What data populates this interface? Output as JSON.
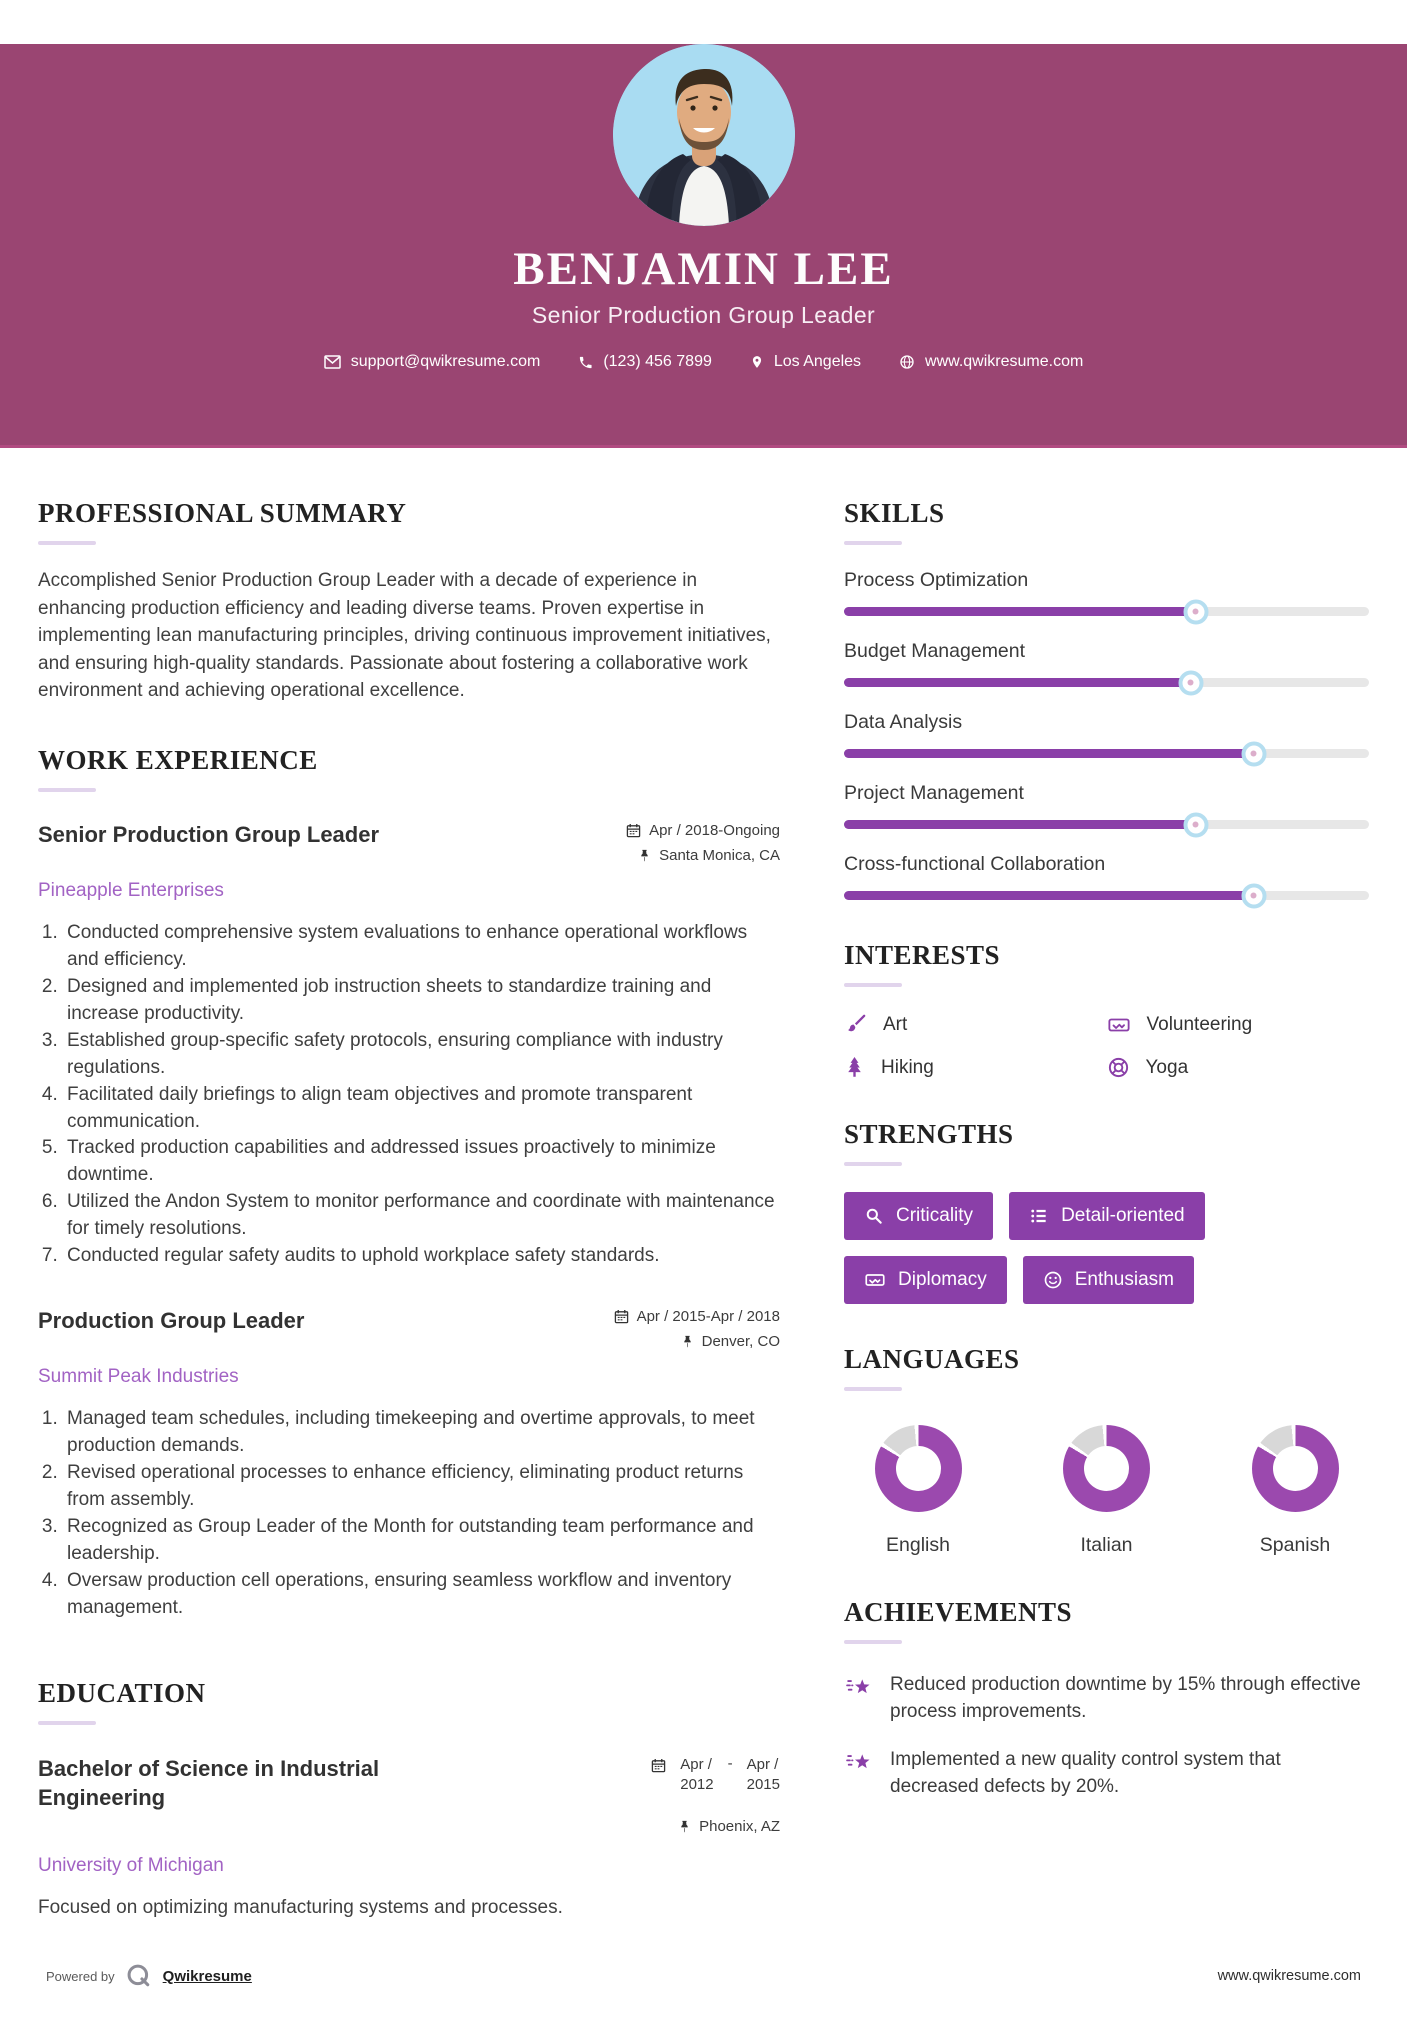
{
  "colors": {
    "header_bg": "#9a4572",
    "accent_purple": "#8a3fa8",
    "donut_purple": "#9b49ae",
    "company_link": "#a263c4",
    "knob_border": "#b5def0"
  },
  "header": {
    "name": "BENJAMIN LEE",
    "title": "Senior Production Group Leader",
    "contact": {
      "email": "support@qwikresume.com",
      "phone": "(123) 456 7899",
      "location": "Los Angeles",
      "website": "www.qwikresume.com"
    }
  },
  "left": {
    "summary": {
      "heading": "PROFESSIONAL SUMMARY",
      "text": "Accomplished Senior Production Group Leader with a decade of experience in enhancing production efficiency and leading diverse teams. Proven expertise in implementing lean manufacturing principles, driving continuous improvement initiatives, and ensuring high-quality standards. Passionate about fostering a collaborative work environment and achieving operational excellence."
    },
    "experience": {
      "heading": "WORK EXPERIENCE",
      "jobs": [
        {
          "title": "Senior Production Group Leader",
          "company": "Pineapple Enterprises",
          "date": "Apr / 2018-Ongoing",
          "location": "Santa Monica, CA",
          "bullets": [
            "Conducted comprehensive system evaluations to enhance operational workflows and efficiency.",
            "Designed and implemented job instruction sheets to standardize training and increase productivity.",
            "Established group-specific safety protocols, ensuring compliance with industry regulations.",
            "Facilitated daily briefings to align team objectives and promote transparent communication.",
            "Tracked production capabilities and addressed issues proactively to minimize downtime.",
            "Utilized the Andon System to monitor performance and coordinate with maintenance for timely resolutions.",
            "Conducted regular safety audits to uphold workplace safety standards."
          ]
        },
        {
          "title": "Production Group Leader",
          "company": "Summit Peak Industries",
          "date": "Apr / 2015-Apr / 2018",
          "location": "Denver, CO",
          "bullets": [
            "Managed team schedules, including timekeeping and overtime approvals, to meet production demands.",
            "Revised operational processes to enhance efficiency, eliminating product returns from assembly.",
            "Recognized as Group Leader of the Month for outstanding team performance and leadership.",
            "Oversaw production cell operations, ensuring seamless workflow and inventory management."
          ]
        }
      ]
    },
    "education": {
      "heading": "EDUCATION",
      "degree": "Bachelor of Science in Industrial Engineering",
      "school": "University of Michigan",
      "date_start": "Apr /\n2012",
      "date_sep": "-",
      "date_end": "Apr /\n2015",
      "location": "Phoenix, AZ",
      "note": "Focused on optimizing manufacturing systems and processes."
    }
  },
  "right": {
    "skills": {
      "heading": "SKILLS",
      "items": [
        {
          "name": "Process Optimization",
          "level": 67
        },
        {
          "name": "Budget Management",
          "level": 66
        },
        {
          "name": "Data Analysis",
          "level": 78
        },
        {
          "name": "Project Management",
          "level": 67
        },
        {
          "name": "Cross-functional Collaboration",
          "level": 78
        }
      ]
    },
    "interests": {
      "heading": "INTERESTS",
      "items": [
        {
          "icon": "paintbrush-icon",
          "label": "Art"
        },
        {
          "icon": "handshake-icon",
          "label": "Volunteering"
        },
        {
          "icon": "tree-icon",
          "label": "Hiking"
        },
        {
          "icon": "lifebuoy-icon",
          "label": "Yoga"
        }
      ]
    },
    "strengths": {
      "heading": "STRENGTHS",
      "items": [
        {
          "icon": "magnifier-icon",
          "label": "Criticality"
        },
        {
          "icon": "list-icon",
          "label": "Detail-oriented"
        },
        {
          "icon": "handshake-icon",
          "label": "Diplomacy"
        },
        {
          "icon": "smiley-icon",
          "label": "Enthusiasm"
        }
      ]
    },
    "languages": {
      "heading": "LANGUAGES",
      "items": [
        {
          "name": "English",
          "percent": 85
        },
        {
          "name": "Italian",
          "percent": 85
        },
        {
          "name": "Spanish",
          "percent": 85
        }
      ]
    },
    "achievements": {
      "heading": "ACHIEVEMENTS",
      "items": [
        "Reduced production downtime by 15% through effective process improvements.",
        "Implemented a new quality control system that decreased defects by 20%."
      ]
    }
  },
  "footer": {
    "powered_by": "Powered by",
    "brand": "Qwikresume",
    "url": "www.qwikresume.com"
  }
}
